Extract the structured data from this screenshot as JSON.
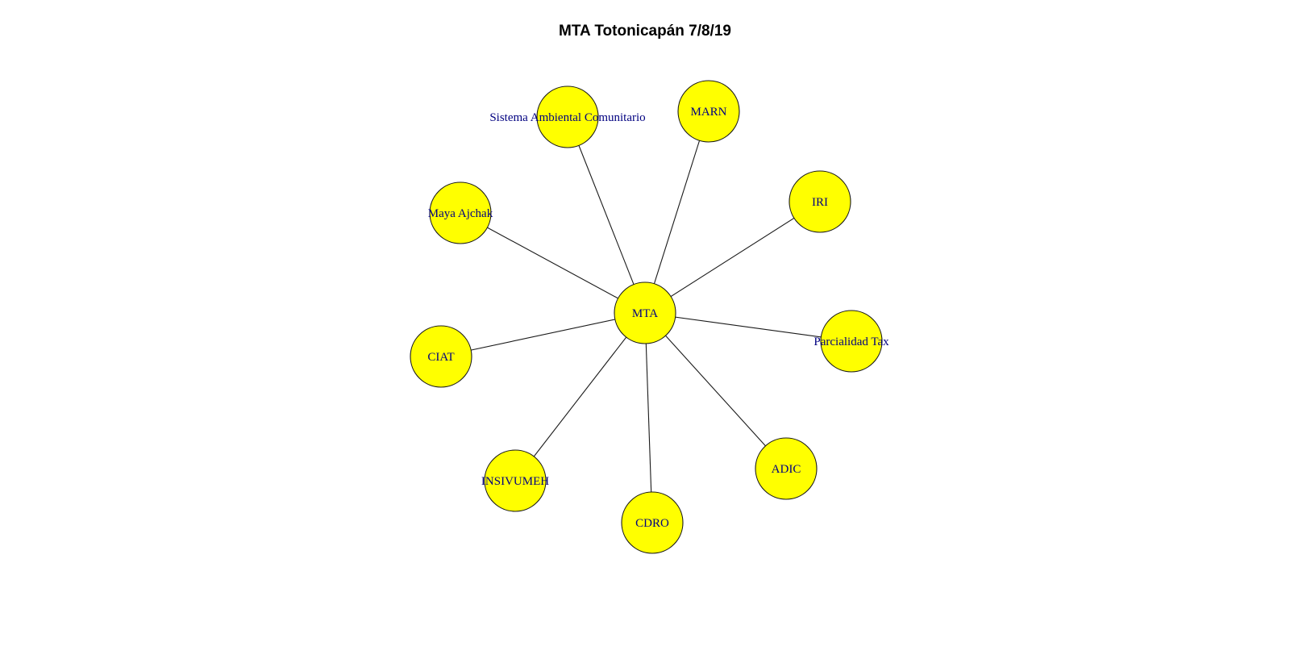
{
  "title": "MTA Totonicapán 7/8/19",
  "colors": {
    "node_fill": "#ffff00",
    "node_stroke": "#1a1a1a",
    "label": "#000080",
    "edge": "#1a1a1a"
  },
  "graph": {
    "center": "MTA",
    "nodes": [
      {
        "id": "mta",
        "label": "MTA"
      },
      {
        "id": "sac",
        "label": "Sistema Ambiental Comunitario"
      },
      {
        "id": "marn",
        "label": "MARN"
      },
      {
        "id": "iri",
        "label": "IRI"
      },
      {
        "id": "parc",
        "label": "Parcialidad Tax"
      },
      {
        "id": "adic",
        "label": "ADIC"
      },
      {
        "id": "cdro",
        "label": "CDRO"
      },
      {
        "id": "insiv",
        "label": "INSIVUMEH"
      },
      {
        "id": "ciat",
        "label": "CIAT"
      },
      {
        "id": "maya",
        "label": "Maya Ajchak"
      }
    ],
    "edges": [
      {
        "from": "mta",
        "to": "sac"
      },
      {
        "from": "mta",
        "to": "marn"
      },
      {
        "from": "mta",
        "to": "iri"
      },
      {
        "from": "mta",
        "to": "parc"
      },
      {
        "from": "mta",
        "to": "adic"
      },
      {
        "from": "mta",
        "to": "cdro"
      },
      {
        "from": "mta",
        "to": "insiv"
      },
      {
        "from": "mta",
        "to": "ciat"
      },
      {
        "from": "mta",
        "to": "maya"
      }
    ]
  }
}
